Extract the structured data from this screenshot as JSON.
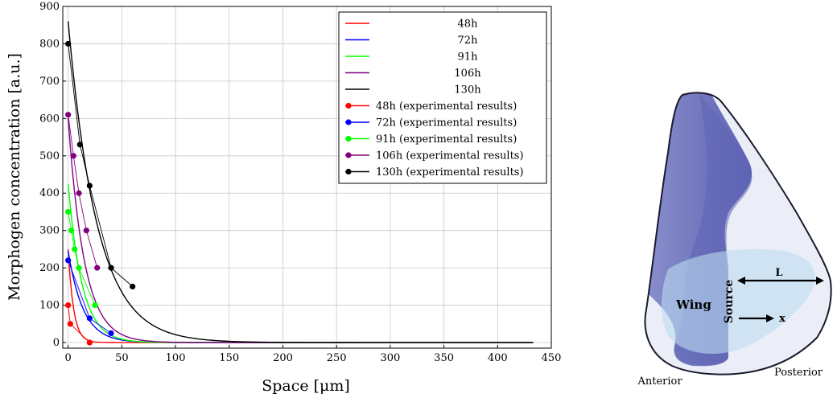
{
  "chart_data": {
    "type": "line",
    "xlabel": "Space [μm]",
    "ylabel": "Morphogen concentration [a.u.]",
    "xlim": [
      -5,
      450
    ],
    "ylim": [
      -15,
      900
    ],
    "xticks": [
      0,
      50,
      100,
      150,
      200,
      250,
      300,
      350,
      400,
      450
    ],
    "yticks": [
      0,
      100,
      200,
      300,
      400,
      500,
      600,
      700,
      800,
      900
    ],
    "grid": true,
    "legend_position": "top-right",
    "series": [
      {
        "name": "48h",
        "color": "#ff0000",
        "x_end": 433,
        "y0": 250,
        "decay_length": 5
      },
      {
        "name": "72h",
        "color": "#0000ff",
        "x_end": 433,
        "y0": 245,
        "decay_length": 14
      },
      {
        "name": "91h",
        "color": "#00ff00",
        "x_end": 433,
        "y0": 425,
        "decay_length": 13
      },
      {
        "name": "106h",
        "color": "#800080",
        "x_end": 433,
        "y0": 600,
        "decay_length": 15
      },
      {
        "name": "130h",
        "color": "#000000",
        "x_end": 433,
        "y0": 860,
        "decay_length": 27
      }
    ],
    "experimental": [
      {
        "name": "48h (experimental results)",
        "color": "#ff0000",
        "points": [
          [
            0,
            100
          ],
          [
            2,
            50
          ],
          [
            20,
            0
          ]
        ]
      },
      {
        "name": "72h (experimental results)",
        "color": "#0000ff",
        "points": [
          [
            0,
            220
          ],
          [
            20,
            65
          ],
          [
            40,
            25
          ]
        ]
      },
      {
        "name": "91h (experimental results)",
        "color": "#00ff00",
        "points": [
          [
            0,
            350
          ],
          [
            3,
            300
          ],
          [
            6,
            250
          ],
          [
            10,
            200
          ],
          [
            25,
            100
          ]
        ]
      },
      {
        "name": "106h (experimental results)",
        "color": "#800080",
        "points": [
          [
            0,
            610
          ],
          [
            5,
            500
          ],
          [
            10,
            400
          ],
          [
            17,
            300
          ],
          [
            27,
            200
          ]
        ]
      },
      {
        "name": "130h (experimental results)",
        "color": "#000000",
        "points": [
          [
            0,
            800
          ],
          [
            11,
            530
          ],
          [
            20,
            420
          ],
          [
            40,
            200
          ],
          [
            60,
            150
          ]
        ]
      }
    ]
  },
  "wing_diagram": {
    "wing_label": "Wing",
    "source_label": "Source",
    "length_label": "L",
    "x_label": "x",
    "anterior_label": "Anterior",
    "posterior_label": "Posterior",
    "colors": {
      "outline": "#1a1a2e",
      "wing_fill": "#6b70b8",
      "disc_fill": "#eceef7",
      "domain_fill": "#bcdcf0"
    }
  }
}
